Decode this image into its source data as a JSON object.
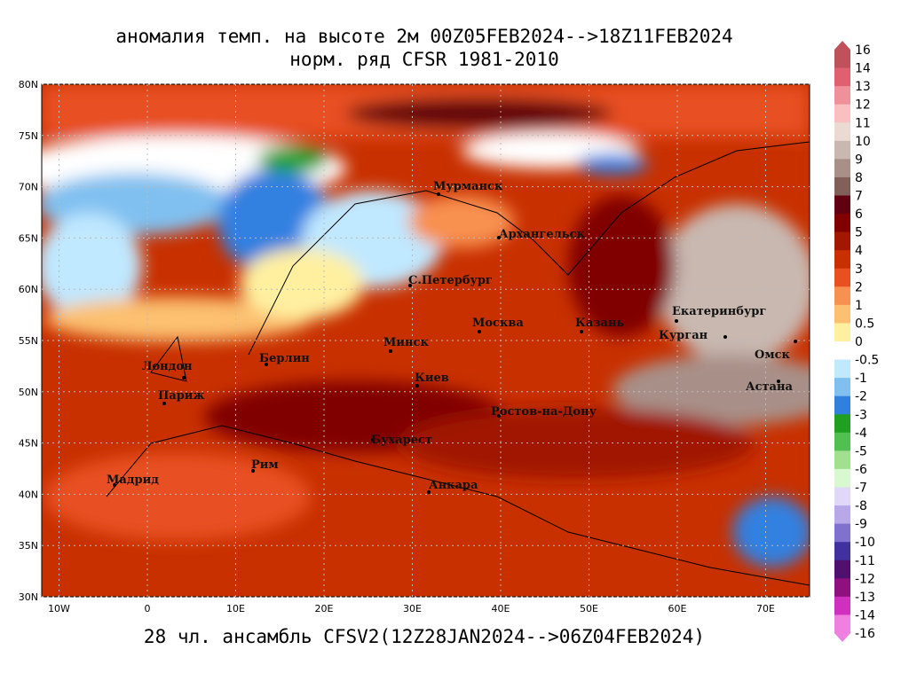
{
  "header": {
    "title": "аномалия темп. на высоте 2м 00Z05FEB2024-->18Z11FEB2024",
    "subtitle": "норм. ряд CFSR 1981-2010"
  },
  "footer": "28 чл. ансамбль CFSV2(12Z28JAN2024-->06Z04FEB2024)",
  "map": {
    "lat_ticks": [
      {
        "value": 80,
        "label": "80N"
      },
      {
        "value": 75,
        "label": "75N"
      },
      {
        "value": 70,
        "label": "70N"
      },
      {
        "value": 65,
        "label": "65N"
      },
      {
        "value": 60,
        "label": "60N"
      },
      {
        "value": 55,
        "label": "55N"
      },
      {
        "value": 50,
        "label": "50N"
      },
      {
        "value": 45,
        "label": "45N"
      },
      {
        "value": 40,
        "label": "40N"
      },
      {
        "value": 35,
        "label": "35N"
      },
      {
        "value": 30,
        "label": "30N"
      }
    ],
    "lon_ticks": [
      {
        "value": -10,
        "label": "10W"
      },
      0,
      {
        "value": 10,
        "label": "10E"
      },
      {
        "value": 20,
        "label": "20E"
      },
      {
        "value": 30,
        "label": "30E"
      },
      {
        "value": 40,
        "label": "40E"
      },
      {
        "value": 50,
        "label": "50E"
      },
      {
        "value": 60,
        "label": "60E"
      },
      {
        "value": 70,
        "label": "70E"
      }
    ],
    "cities": [
      "Мурманск",
      "Архангельск",
      "С.Петербург",
      "Москва",
      "Казань",
      "Екатеринбург",
      "Курган",
      "Омск",
      "Астана",
      "Минск",
      "Берлин",
      "Лондон",
      "Париж",
      "Киев",
      "Ростов-на-Дону",
      "Бухарест",
      "Рим",
      "Мадрид",
      "Анкара"
    ]
  },
  "colorbar": {
    "labels": [
      16,
      14,
      13,
      12,
      11,
      10,
      9,
      8,
      7,
      6,
      5,
      4,
      3,
      2,
      1,
      0.5,
      0,
      -0.5,
      -1,
      -2,
      -3,
      -4,
      -5,
      -6,
      -7,
      -8,
      -9,
      -10,
      -11,
      -12,
      -13,
      -14,
      -16
    ],
    "colors": [
      "#c0505a",
      "#e06070",
      "#f0909a",
      "#f8c0c0",
      "#eadad2",
      "#c8b8b0",
      "#a89088",
      "#806058",
      "#600010",
      "#800000",
      "#a01800",
      "#c83000",
      "#e85020",
      "#f89050",
      "#fcc070",
      "#fff0a0",
      "#ffffff",
      "#c0e8ff",
      "#80c0f0",
      "#3080e0",
      "#20a020",
      "#50c050",
      "#a0e090",
      "#d8f8d0",
      "#e0d8f8",
      "#b8a8e8",
      "#8070d0",
      "#4030a0",
      "#501070",
      "#901080",
      "#d030c0",
      "#f080e0"
    ]
  }
}
